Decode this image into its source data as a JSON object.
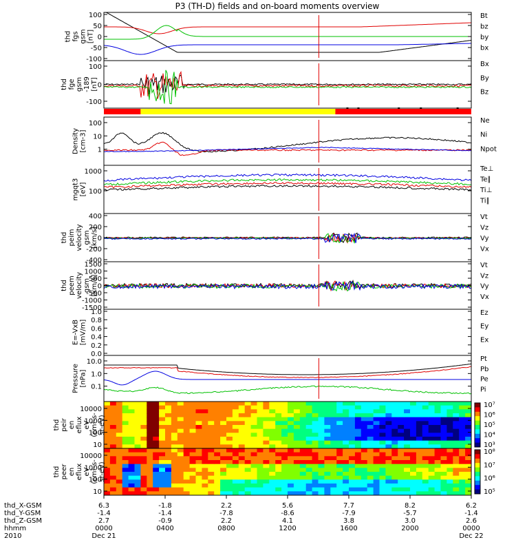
{
  "title": "P3 (TH-D) fields and on-board moments overview",
  "chart_data": [
    {
      "type": "line",
      "ylabel": [
        "thd",
        "fgs",
        "gsm",
        "[nT]"
      ],
      "yticks": [
        "100",
        "50",
        "0",
        "-50",
        "-100"
      ],
      "ylim": [
        -100,
        100
      ],
      "legend": [
        {
          "label": "Bt",
          "color": "#000000"
        },
        {
          "label": "bz",
          "color": "#e00000"
        },
        {
          "label": "by",
          "color": "#00c000"
        },
        {
          "label": "bx",
          "color": "#0000e0"
        }
      ]
    },
    {
      "type": "line",
      "ylabel": [
        "thd",
        "fge",
        "gsm",
        "-189",
        "[nT]"
      ],
      "yticks": [
        "100",
        "0",
        "-100"
      ],
      "ylim": [
        -120,
        120
      ],
      "legend": [
        {
          "label": "Bx",
          "color": "#0000e0"
        },
        {
          "label": "By",
          "color": "#00c000"
        },
        {
          "label": "Bz",
          "color": "#e00000"
        }
      ]
    },
    {
      "type": "bar",
      "name": "mode bar",
      "segments": [
        {
          "from": 0.0,
          "to": 0.1,
          "color": "#ff0000"
        },
        {
          "from": 0.1,
          "to": 0.63,
          "color": "#ffff00"
        },
        {
          "from": 0.63,
          "to": 1.0,
          "color": "#ff0000"
        }
      ]
    },
    {
      "type": "line",
      "ylabel": [
        "Density",
        "[cm-3]"
      ],
      "yticks": [
        "100",
        "10",
        "1"
      ],
      "scale": "log",
      "legend": [
        {
          "label": "Ne",
          "color": "#e00000"
        },
        {
          "label": "Ni",
          "color": "#000000"
        },
        {
          "label": "Npot",
          "color": "#0000e0"
        }
      ]
    },
    {
      "type": "line",
      "ylabel": [
        "mgqt3",
        "[eV]"
      ],
      "yticks": [
        "1000",
        "100"
      ],
      "scale": "log",
      "legend": [
        {
          "label": "Te⊥",
          "color": "#e00000"
        },
        {
          "label": "Te∥",
          "color": "#000000"
        },
        {
          "label": "Ti⊥",
          "color": "#0000e0"
        },
        {
          "label": "Ti∥",
          "color": "#00c000"
        }
      ]
    },
    {
      "type": "line",
      "ylabel": [
        "thd",
        "peim",
        "velocity",
        "gsm",
        "[km/s]"
      ],
      "yticks": [
        "400",
        "200",
        "0",
        "-200",
        "-400"
      ],
      "ylim": [
        -400,
        400
      ],
      "legend": [
        {
          "label": "Vt",
          "color": "#000000"
        },
        {
          "label": "Vz",
          "color": "#e00000"
        },
        {
          "label": "Vy",
          "color": "#00c000"
        },
        {
          "label": "Vx",
          "color": "#0000e0"
        }
      ]
    },
    {
      "type": "line",
      "ylabel": [
        "thd",
        "peem",
        "velocity",
        "gsm",
        "[km/s]"
      ],
      "yticks": [
        "1500",
        "1000",
        "500",
        "0",
        "-500",
        "-1000",
        "-1500"
      ],
      "ylim": [
        -1500,
        1500
      ],
      "legend": [
        {
          "label": "Vt",
          "color": "#000000"
        },
        {
          "label": "Vz",
          "color": "#e00000"
        },
        {
          "label": "Vy",
          "color": "#00c000"
        },
        {
          "label": "Vx",
          "color": "#0000e0"
        }
      ]
    },
    {
      "type": "line",
      "ylabel": [
        "E=-VxB",
        "[mV/m]"
      ],
      "yticks": [
        "1.0",
        "0.8",
        "0.6",
        "0.4",
        "0.2",
        "0.0"
      ],
      "ylim": [
        0,
        1
      ],
      "legend": [
        {
          "label": "Ez",
          "color": "#e00000"
        },
        {
          "label": "Ey",
          "color": "#00c000"
        },
        {
          "label": "Ex",
          "color": "#0000e0"
        }
      ]
    },
    {
      "type": "line",
      "ylabel": [
        "Pressure",
        "[nPa]"
      ],
      "yticks": [
        "10.0",
        "1.0",
        "0.1"
      ],
      "scale": "log",
      "legend": [
        {
          "label": "Pt",
          "color": "#000000"
        },
        {
          "label": "Pb",
          "color": "#e00000"
        },
        {
          "label": "Pe",
          "color": "#00c000"
        },
        {
          "label": "Pi",
          "color": "#0000e0"
        }
      ]
    },
    {
      "type": "heatmap",
      "ylabel": [
        "thd",
        "peir",
        "en",
        "eflux",
        "eV",
        "(cm²-s-",
        "sr-eV)"
      ],
      "yticks": [
        "10000",
        "1000",
        "100",
        "10"
      ],
      "colorbar": [
        "10⁷",
        "10⁶",
        "10⁵",
        "10⁴",
        "10³"
      ]
    },
    {
      "type": "heatmap",
      "ylabel": [
        "thd",
        "peer",
        "en",
        "eflux",
        "eV",
        "(cm²-s-",
        "sr-eV)"
      ],
      "yticks": [
        "10000",
        "1000",
        "100",
        "10"
      ],
      "colorbar": [
        "10⁸",
        "10⁷",
        "10⁶",
        "10⁵"
      ]
    }
  ],
  "xaxis": {
    "rows": [
      {
        "label": "thd_X-GSM",
        "values": [
          "6.3",
          "-1.8",
          "2.2",
          "5.6",
          "7.7",
          "8.2",
          "6.2"
        ]
      },
      {
        "label": "thd_Y-GSM",
        "values": [
          "-1.4",
          "-1.4",
          "-7.8",
          "-8.6",
          "-7.9",
          "-5.7",
          "-1.4"
        ]
      },
      {
        "label": "thd_Z-GSM",
        "values": [
          "2.7",
          "-0.9",
          "2.2",
          "4.1",
          "3.8",
          "3.0",
          "2.6"
        ]
      },
      {
        "label": "hhmm",
        "values": [
          "0000",
          "0400",
          "0800",
          "1200",
          "1600",
          "2000",
          "0000"
        ]
      },
      {
        "label": "2010",
        "values": [
          "Dec 21",
          "",
          "",
          "",
          "",
          "",
          "Dec 22"
        ]
      }
    ]
  }
}
